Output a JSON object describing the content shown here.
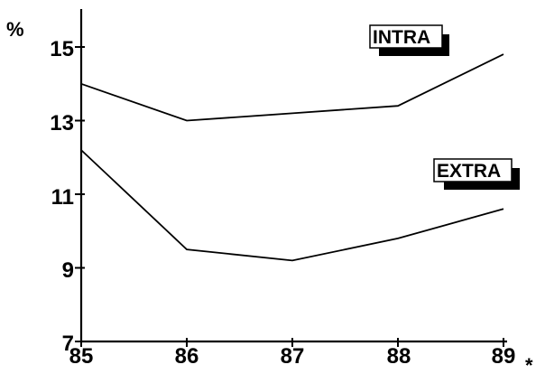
{
  "chart_data": {
    "type": "line",
    "title": "",
    "ylabel": "%",
    "xlabel": "",
    "x_note": "*",
    "categories": [
      "85",
      "86",
      "87",
      "88",
      "89"
    ],
    "yticks": [
      "15",
      "13",
      "11",
      "9",
      "7"
    ],
    "ylim": [
      7,
      16
    ],
    "grid": false,
    "series": [
      {
        "name": "INTRA",
        "values": [
          14.0,
          13.0,
          13.2,
          13.4,
          14.8
        ]
      },
      {
        "name": "EXTRA",
        "values": [
          12.2,
          9.5,
          9.2,
          9.8,
          10.6
        ]
      }
    ]
  }
}
